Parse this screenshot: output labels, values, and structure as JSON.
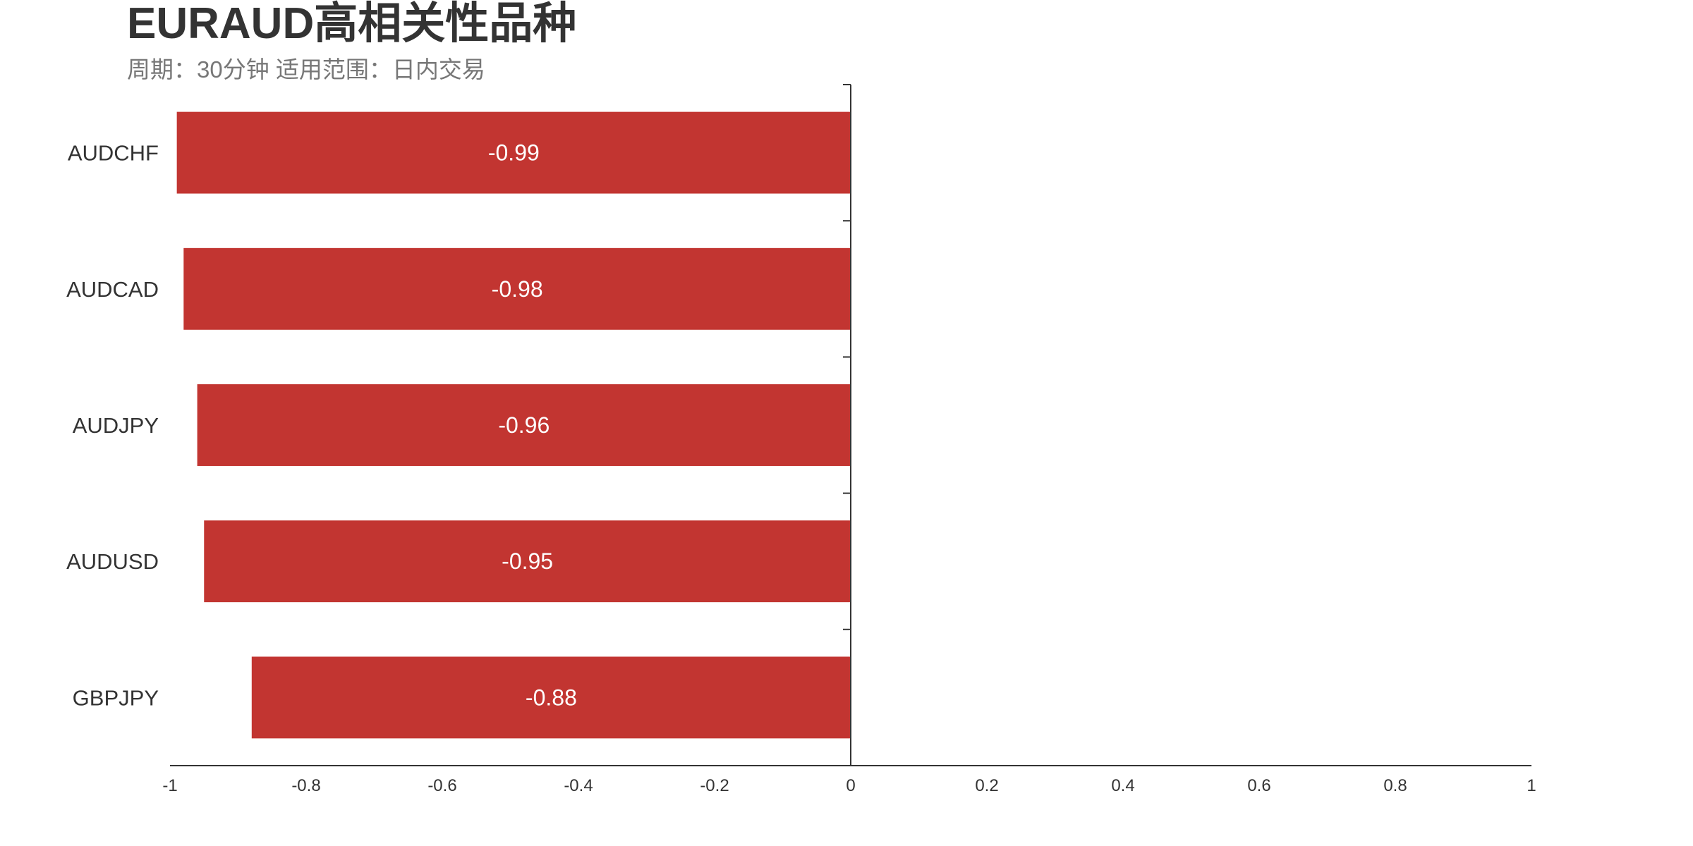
{
  "chart_data": {
    "type": "bar",
    "orientation": "horizontal",
    "title": "EURAUD高相关性品种",
    "subtitle": "周期：30分钟 适用范围：日内交易",
    "categories": [
      "AUDCHF",
      "AUDCAD",
      "AUDJPY",
      "AUDUSD",
      "GBPJPY"
    ],
    "values": [
      -0.99,
      -0.98,
      -0.96,
      -0.95,
      -0.88
    ],
    "xlim": [
      -1,
      1
    ],
    "xticks": [
      "-1",
      "-0.8",
      "-0.6",
      "-0.4",
      "-0.2",
      "0",
      "0.2",
      "0.4",
      "0.6",
      "0.8",
      "1"
    ],
    "grid": false,
    "bar_color": "#c23531",
    "label_color": "#ffffff"
  }
}
